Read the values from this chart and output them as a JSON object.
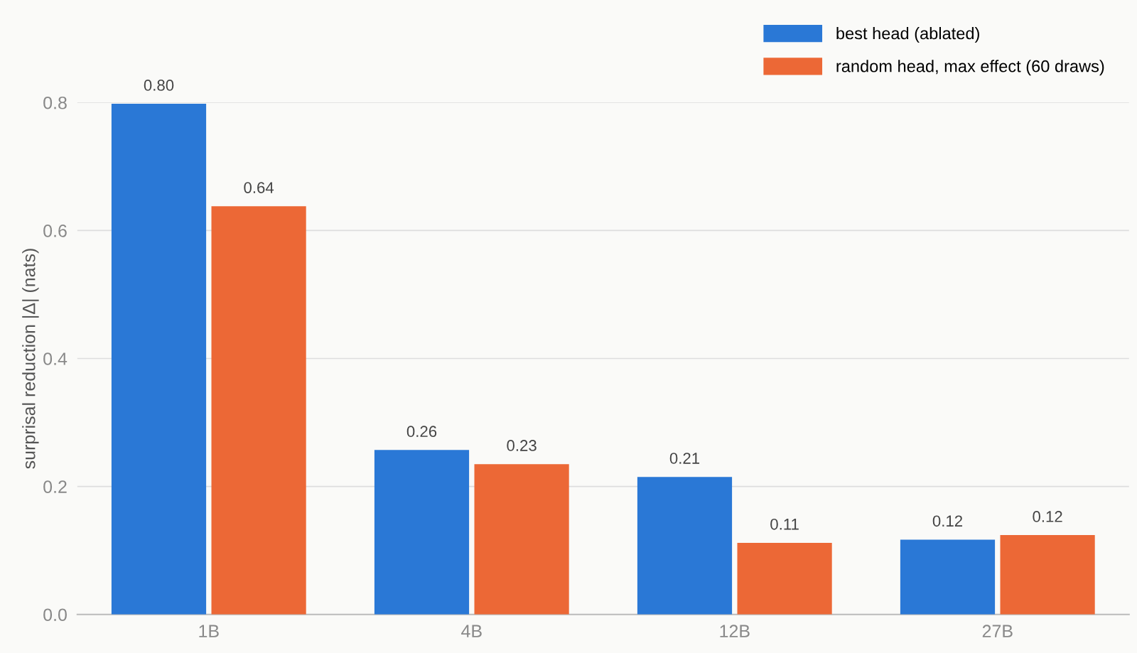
{
  "chart_data": {
    "type": "bar",
    "ylabel": "surprisal reduction |Δ| (nats)",
    "categories": [
      "1B",
      "4B",
      "12B",
      "27B"
    ],
    "series": [
      {
        "name": "best head (ablated)",
        "color": "#2a78d6",
        "values": [
          0.798,
          0.257,
          0.215,
          0.117
        ],
        "value_labels": [
          "0.80",
          "0.26",
          "0.21",
          "0.12"
        ]
      },
      {
        "name": "random head, max effect (60 draws)",
        "color": "#ec6836",
        "values": [
          0.638,
          0.235,
          0.112,
          0.124
        ],
        "value_labels": [
          "0.64",
          "0.23",
          "0.11",
          "0.12"
        ]
      }
    ],
    "ylim": [
      0,
      0.8
    ],
    "yticks": [
      {
        "value": 0,
        "label": "0.0"
      },
      {
        "value": 0.2,
        "label": "0.2"
      },
      {
        "value": 0.4,
        "label": "0.4"
      },
      {
        "value": 0.6,
        "label": "0.6"
      },
      {
        "value": 0.8,
        "label": "0.8"
      }
    ],
    "grid": "y",
    "legend": "top right"
  }
}
